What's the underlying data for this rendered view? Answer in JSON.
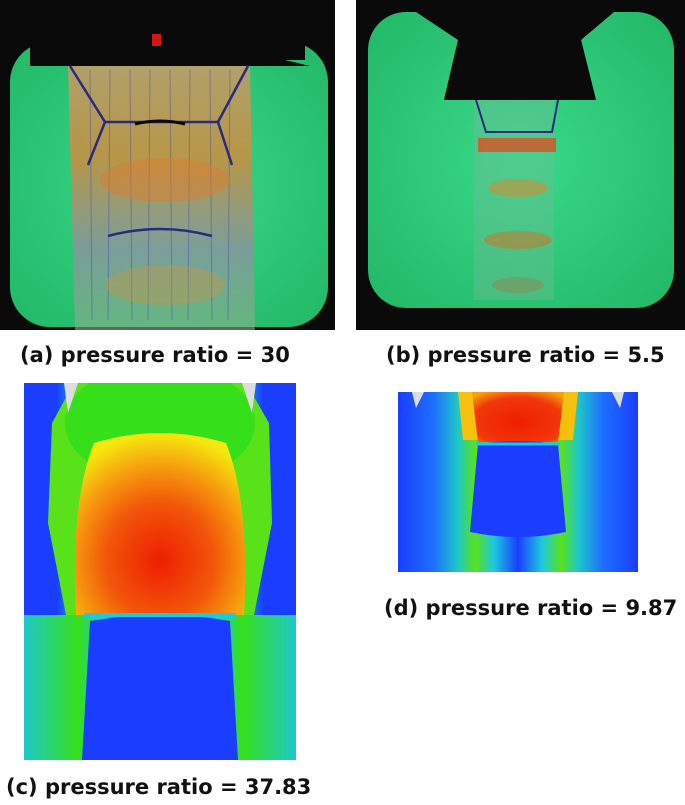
{
  "figure": {
    "panels": [
      {
        "id": "a",
        "caption": "(a) pressure ratio = 30"
      },
      {
        "id": "b",
        "caption": "(b) pressure ratio = 5.5"
      },
      {
        "id": "c",
        "caption": "(c) pressure ratio = 37.83"
      },
      {
        "id": "d",
        "caption": "(d) pressure ratio = 9.87"
      }
    ]
  },
  "colors": {
    "schlieren_green": "#2fd07a",
    "frame_black": "#0a0a0a",
    "cfd_blue": "#1a3dff",
    "cfd_red": "#ee1e00",
    "cfd_green": "#35e01a",
    "cfd_yellow": "#f6e70e"
  }
}
